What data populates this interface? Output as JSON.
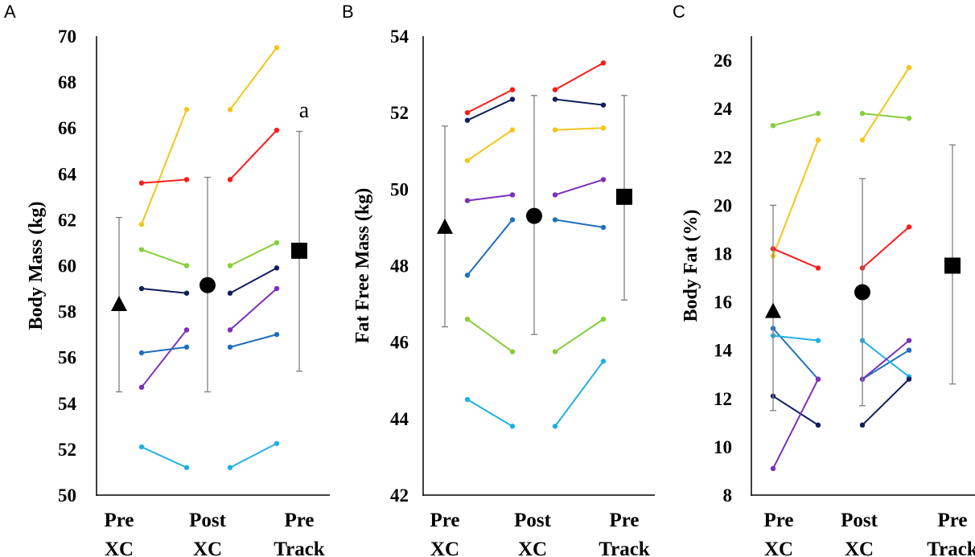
{
  "chart_data": [
    {
      "panel": "A",
      "type": "line",
      "ylabel": "Body Mass (kg)",
      "ylim": [
        50,
        70
      ],
      "yticks": [
        50,
        52,
        54,
        56,
        58,
        60,
        62,
        64,
        66,
        68,
        70
      ],
      "categories": [
        {
          "line1": "Pre",
          "line2": "XC"
        },
        {
          "line1": "Post",
          "line2": "XC"
        },
        {
          "line1": "Pre",
          "line2": "Track"
        }
      ],
      "individuals": [
        {
          "color": "#f5c518",
          "pre_xc": 61.8,
          "post_xc": 66.8,
          "pre_track": 69.5
        },
        {
          "color": "#ff1a1a",
          "pre_xc": 63.6,
          "post_xc": 63.75,
          "pre_track": 65.9
        },
        {
          "color": "#86cf3a",
          "pre_xc": 60.7,
          "post_xc": 60.0,
          "pre_track": 61.0
        },
        {
          "color": "#0f1e5c",
          "pre_xc": 59.0,
          "post_xc": 58.8,
          "pre_track": 59.9
        },
        {
          "color": "#7a2fbd",
          "pre_xc": 54.7,
          "post_xc": 57.2,
          "pre_track": 59.0
        },
        {
          "color": "#1f6fbf",
          "pre_xc": 56.2,
          "post_xc": 56.45,
          "pre_track": 57.0
        },
        {
          "color": "#1fb0e6",
          "pre_xc": 52.1,
          "post_xc": 51.2,
          "pre_track": 52.25
        }
      ],
      "group_means": [
        {
          "marker": "triangle",
          "mean": 58.3,
          "sd_low": 54.5,
          "sd_high": 62.1
        },
        {
          "marker": "circle",
          "mean": 59.15,
          "sd_low": 54.5,
          "sd_high": 63.85
        },
        {
          "marker": "square",
          "mean": 60.65,
          "sd_low": 55.4,
          "sd_high": 65.85
        }
      ],
      "annotation": "a"
    },
    {
      "panel": "B",
      "type": "line",
      "ylabel": "Fat Free Mass (kg)",
      "ylim": [
        42,
        54
      ],
      "yticks": [
        42,
        44,
        46,
        48,
        50,
        52,
        54
      ],
      "categories": [
        {
          "line1": "Pre",
          "line2": "XC"
        },
        {
          "line1": "Post",
          "line2": "XC"
        },
        {
          "line1": "Pre",
          "line2": "Track"
        }
      ],
      "individuals": [
        {
          "color": "#ff1a1a",
          "pre_xc": 52.0,
          "post_xc": 52.6,
          "pre_track": 53.3
        },
        {
          "color": "#0f1e5c",
          "pre_xc": 51.8,
          "post_xc": 52.35,
          "pre_track": 52.2
        },
        {
          "color": "#f5c518",
          "pre_xc": 50.75,
          "post_xc": 51.55,
          "pre_track": 51.6
        },
        {
          "color": "#7a2fbd",
          "pre_xc": 49.7,
          "post_xc": 49.85,
          "pre_track": 50.25
        },
        {
          "color": "#1f6fbf",
          "pre_xc": 47.75,
          "post_xc": 49.2,
          "pre_track": 49.0
        },
        {
          "color": "#86cf3a",
          "pre_xc": 46.6,
          "post_xc": 45.75,
          "pre_track": 46.6
        },
        {
          "color": "#1fb0e6",
          "pre_xc": 44.5,
          "post_xc": 43.8,
          "pre_track": 45.5
        }
      ],
      "group_means": [
        {
          "marker": "triangle",
          "mean": 49.0,
          "sd_low": 46.4,
          "sd_high": 51.65
        },
        {
          "marker": "circle",
          "mean": 49.3,
          "sd_low": 46.2,
          "sd_high": 52.45
        },
        {
          "marker": "square",
          "mean": 49.8,
          "sd_low": 47.1,
          "sd_high": 52.45
        }
      ],
      "annotation": ""
    },
    {
      "panel": "C",
      "type": "line",
      "ylabel": "Body Fat (%)",
      "ylim": [
        8,
        27
      ],
      "yticks": [
        8,
        10,
        12,
        14,
        16,
        18,
        20,
        22,
        24,
        26
      ],
      "categories": [
        {
          "line1": "Pre",
          "line2": "XC"
        },
        {
          "line1": "Post",
          "line2": "XC"
        },
        {
          "line1": "Pre",
          "line2": "Track"
        }
      ],
      "individuals": [
        {
          "color": "#86cf3a",
          "pre_xc": 23.3,
          "post_xc": 23.8,
          "pre_track": 23.6
        },
        {
          "color": "#f5c518",
          "pre_xc": 17.9,
          "post_xc": 22.7,
          "pre_track": 25.7
        },
        {
          "color": "#ff1a1a",
          "pre_xc": 18.2,
          "post_xc": 17.4,
          "pre_track": 19.1
        },
        {
          "color": "#1f6fbf",
          "pre_xc": 14.9,
          "post_xc": 12.8,
          "pre_track": 14.0
        },
        {
          "color": "#1fb0e6",
          "pre_xc": 14.6,
          "post_xc": 14.4,
          "pre_track": 12.9
        },
        {
          "color": "#0f1e5c",
          "pre_xc": 12.1,
          "post_xc": 10.9,
          "pre_track": 12.8
        },
        {
          "color": "#7a2fbd",
          "pre_xc": 9.1,
          "post_xc": 12.8,
          "pre_track": 14.4
        }
      ],
      "group_means": [
        {
          "marker": "triangle",
          "mean": 15.6,
          "sd_low": 11.5,
          "sd_high": 20.0
        },
        {
          "marker": "circle",
          "mean": 16.4,
          "sd_low": 11.7,
          "sd_high": 21.1
        },
        {
          "marker": "square",
          "mean": 17.5,
          "sd_low": 12.6,
          "sd_high": 22.5
        }
      ],
      "annotation": ""
    }
  ]
}
